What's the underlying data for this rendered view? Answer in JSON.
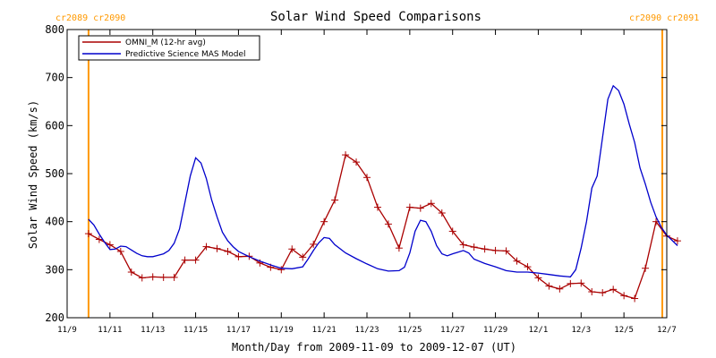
{
  "chart_data": {
    "type": "line",
    "title": "Solar Wind Speed Comparisons",
    "xlabel": "Month/Day from 2009-11-09 to 2009-12-07 (UT)",
    "ylabel": "Solar Wind Speed (km/s)",
    "xlim": [
      "2009-11-09",
      "2009-12-07"
    ],
    "ylim": [
      200,
      800
    ],
    "y_ticks": [
      200,
      300,
      400,
      500,
      600,
      700,
      800
    ],
    "x_ticks": [
      {
        "date": "2009-11-09",
        "label": "11/9"
      },
      {
        "date": "2009-11-11",
        "label": "11/11"
      },
      {
        "date": "2009-11-13",
        "label": "11/13"
      },
      {
        "date": "2009-11-15",
        "label": "11/15"
      },
      {
        "date": "2009-11-17",
        "label": "11/17"
      },
      {
        "date": "2009-11-19",
        "label": "11/19"
      },
      {
        "date": "2009-11-21",
        "label": "11/21"
      },
      {
        "date": "2009-11-23",
        "label": "11/23"
      },
      {
        "date": "2009-11-25",
        "label": "11/25"
      },
      {
        "date": "2009-11-27",
        "label": "11/27"
      },
      {
        "date": "2009-11-29",
        "label": "11/29"
      },
      {
        "date": "2009-12-01",
        "label": "12/1"
      },
      {
        "date": "2009-12-03",
        "label": "12/3"
      },
      {
        "date": "2009-12-05",
        "label": "12/5"
      },
      {
        "date": "2009-12-07",
        "label": "12/7"
      }
    ],
    "legend_position": "top-left",
    "grid": false,
    "carrington_markers": [
      {
        "date": "2009-11-10",
        "label": "cr2089 cr2090",
        "color": "#ff9900"
      },
      {
        "date": "2009-12-07",
        "label": "cr2090 cr2091",
        "color": "#ff9900"
      }
    ],
    "series": [
      {
        "name": "OMNI_M (12-hr avg)",
        "color": "#aa0000",
        "marker": "plus",
        "points": [
          [
            "2009-11-10 00:00",
            375
          ],
          [
            "2009-11-10 12:00",
            363
          ],
          [
            "2009-11-11 00:00",
            352
          ],
          [
            "2009-11-11 12:00",
            338
          ],
          [
            "2009-11-12 00:00",
            295
          ],
          [
            "2009-11-12 12:00",
            283
          ],
          [
            "2009-11-13 00:00",
            285
          ],
          [
            "2009-11-13 12:00",
            284
          ],
          [
            "2009-11-14 00:00",
            284
          ],
          [
            "2009-11-14 12:00",
            320
          ],
          [
            "2009-11-15 00:00",
            320
          ],
          [
            "2009-11-15 12:00",
            348
          ],
          [
            "2009-11-16 00:00",
            344
          ],
          [
            "2009-11-16 12:00",
            338
          ],
          [
            "2009-11-17 00:00",
            327
          ],
          [
            "2009-11-17 12:00",
            328
          ],
          [
            "2009-11-18 00:00",
            314
          ],
          [
            "2009-11-18 12:00",
            305
          ],
          [
            "2009-11-19 00:00",
            300
          ],
          [
            "2009-11-19 12:00",
            343
          ],
          [
            "2009-11-20 00:00",
            326
          ],
          [
            "2009-11-20 12:00",
            353
          ],
          [
            "2009-11-21 00:00",
            400
          ],
          [
            "2009-11-21 12:00",
            445
          ],
          [
            "2009-11-22 00:00",
            539
          ],
          [
            "2009-11-22 12:00",
            524
          ],
          [
            "2009-11-23 00:00",
            492
          ],
          [
            "2009-11-23 12:00",
            430
          ],
          [
            "2009-11-24 00:00",
            395
          ],
          [
            "2009-11-24 12:00",
            345
          ],
          [
            "2009-11-25 00:00",
            430
          ],
          [
            "2009-11-25 12:00",
            428
          ],
          [
            "2009-11-26 00:00",
            438
          ],
          [
            "2009-11-26 12:00",
            418
          ],
          [
            "2009-11-27 00:00",
            380
          ],
          [
            "2009-11-27 12:00",
            352
          ],
          [
            "2009-11-28 00:00",
            347
          ],
          [
            "2009-11-28 12:00",
            343
          ],
          [
            "2009-11-29 00:00",
            340
          ],
          [
            "2009-11-29 12:00",
            339
          ],
          [
            "2009-11-30 00:00",
            318
          ],
          [
            "2009-11-30 12:00",
            306
          ],
          [
            "2009-12-01 00:00",
            283
          ],
          [
            "2009-12-01 12:00",
            266
          ],
          [
            "2009-12-02 00:00",
            260
          ],
          [
            "2009-12-02 12:00",
            271
          ],
          [
            "2009-12-03 00:00",
            272
          ],
          [
            "2009-12-03 12:00",
            254
          ],
          [
            "2009-12-04 00:00",
            252
          ],
          [
            "2009-12-04 12:00",
            259
          ],
          [
            "2009-12-05 00:00",
            246
          ],
          [
            "2009-12-05 12:00",
            240
          ],
          [
            "2009-12-06 00:00",
            303
          ],
          [
            "2009-12-06 12:00",
            400
          ],
          [
            "2009-12-07 00:00",
            370
          ],
          [
            "2009-12-07 12:00",
            360
          ]
        ]
      },
      {
        "name": "Predictive Science MAS Model",
        "color": "#0000cc",
        "marker": "none",
        "points": [
          [
            "2009-11-10 00:00",
            405
          ],
          [
            "2009-11-10 06:00",
            393
          ],
          [
            "2009-11-10 12:00",
            374
          ],
          [
            "2009-11-10 18:00",
            357
          ],
          [
            "2009-11-11 00:00",
            342
          ],
          [
            "2009-11-11 06:00",
            343
          ],
          [
            "2009-11-11 12:00",
            349
          ],
          [
            "2009-11-11 18:00",
            348
          ],
          [
            "2009-11-12 00:00",
            341
          ],
          [
            "2009-11-12 06:00",
            334
          ],
          [
            "2009-11-12 12:00",
            329
          ],
          [
            "2009-11-12 18:00",
            327
          ],
          [
            "2009-11-13 00:00",
            327
          ],
          [
            "2009-11-13 06:00",
            330
          ],
          [
            "2009-11-13 12:00",
            333
          ],
          [
            "2009-11-13 18:00",
            340
          ],
          [
            "2009-11-14 00:00",
            355
          ],
          [
            "2009-11-14 06:00",
            385
          ],
          [
            "2009-11-14 12:00",
            440
          ],
          [
            "2009-11-14 18:00",
            495
          ],
          [
            "2009-11-15 00:00",
            533
          ],
          [
            "2009-11-15 06:00",
            522
          ],
          [
            "2009-11-15 12:00",
            490
          ],
          [
            "2009-11-15 18:00",
            445
          ],
          [
            "2009-11-16 00:00",
            410
          ],
          [
            "2009-11-16 06:00",
            378
          ],
          [
            "2009-11-16 12:00",
            360
          ],
          [
            "2009-11-16 18:00",
            348
          ],
          [
            "2009-11-17 00:00",
            338
          ],
          [
            "2009-11-17 12:00",
            327
          ],
          [
            "2009-11-18 00:00",
            318
          ],
          [
            "2009-11-18 12:00",
            310
          ],
          [
            "2009-11-19 00:00",
            303
          ],
          [
            "2009-11-19 12:00",
            302
          ],
          [
            "2009-11-20 00:00",
            306
          ],
          [
            "2009-11-20 06:00",
            322
          ],
          [
            "2009-11-20 12:00",
            340
          ],
          [
            "2009-11-20 18:00",
            356
          ],
          [
            "2009-11-21 00:00",
            367
          ],
          [
            "2009-11-21 06:00",
            365
          ],
          [
            "2009-11-21 12:00",
            352
          ],
          [
            "2009-11-22 00:00",
            335
          ],
          [
            "2009-11-22 12:00",
            323
          ],
          [
            "2009-11-23 00:00",
            312
          ],
          [
            "2009-11-23 12:00",
            302
          ],
          [
            "2009-11-24 00:00",
            297
          ],
          [
            "2009-11-24 12:00",
            298
          ],
          [
            "2009-11-24 18:00",
            305
          ],
          [
            "2009-11-25 00:00",
            335
          ],
          [
            "2009-11-25 06:00",
            380
          ],
          [
            "2009-11-25 12:00",
            403
          ],
          [
            "2009-11-25 18:00",
            400
          ],
          [
            "2009-11-26 00:00",
            380
          ],
          [
            "2009-11-26 06:00",
            350
          ],
          [
            "2009-11-26 12:00",
            333
          ],
          [
            "2009-11-26 18:00",
            329
          ],
          [
            "2009-11-27 00:00",
            333
          ],
          [
            "2009-11-27 12:00",
            340
          ],
          [
            "2009-11-27 18:00",
            335
          ],
          [
            "2009-11-28 00:00",
            322
          ],
          [
            "2009-11-28 12:00",
            313
          ],
          [
            "2009-11-29 00:00",
            306
          ],
          [
            "2009-11-29 12:00",
            298
          ],
          [
            "2009-11-30 00:00",
            295
          ],
          [
            "2009-11-30 12:00",
            295
          ],
          [
            "2009-12-01 00:00",
            293
          ],
          [
            "2009-12-01 12:00",
            290
          ],
          [
            "2009-12-02 00:00",
            287
          ],
          [
            "2009-12-02 12:00",
            285
          ],
          [
            "2009-12-02 18:00",
            300
          ],
          [
            "2009-12-03 00:00",
            345
          ],
          [
            "2009-12-03 06:00",
            400
          ],
          [
            "2009-12-03 12:00",
            470
          ],
          [
            "2009-12-03 18:00",
            495
          ],
          [
            "2009-12-04 00:00",
            575
          ],
          [
            "2009-12-04 06:00",
            655
          ],
          [
            "2009-12-04 12:00",
            683
          ],
          [
            "2009-12-04 18:00",
            673
          ],
          [
            "2009-12-05 00:00",
            645
          ],
          [
            "2009-12-05 06:00",
            603
          ],
          [
            "2009-12-05 12:00",
            565
          ],
          [
            "2009-12-05 18:00",
            512
          ],
          [
            "2009-12-06 00:00",
            478
          ],
          [
            "2009-12-06 06:00",
            440
          ],
          [
            "2009-12-06 12:00",
            410
          ],
          [
            "2009-12-06 18:00",
            388
          ],
          [
            "2009-12-07 00:00",
            372
          ],
          [
            "2009-12-07 12:00",
            350
          ]
        ]
      }
    ]
  }
}
